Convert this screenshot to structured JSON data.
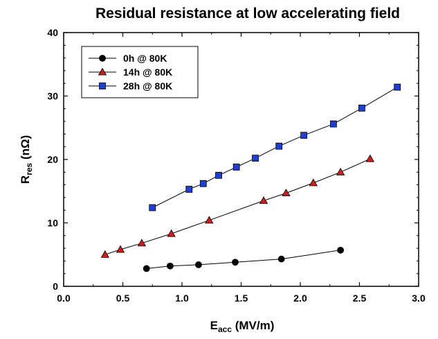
{
  "chart_data": {
    "type": "line",
    "title": "Residual resistance at low accelerating field",
    "xlabel_main": "E",
    "xlabel_sub": "acc",
    "xlabel_unit": " (MV/m)",
    "ylabel_main": "R",
    "ylabel_sub": "res",
    "ylabel_unit": " (nΩ)",
    "xlim": [
      0.0,
      3.0
    ],
    "ylim": [
      0,
      40
    ],
    "xticks": [
      "0.0",
      "0.5",
      "1.0",
      "1.5",
      "2.0",
      "2.5",
      "3.0"
    ],
    "yticks": [
      "0",
      "10",
      "20",
      "30",
      "40"
    ],
    "grid": false,
    "legend_position": "top-left",
    "series": [
      {
        "name": "0h @ 80K",
        "marker": "circle",
        "color": "#000000",
        "x": [
          0.7,
          0.9,
          1.14,
          1.45,
          1.84,
          2.34
        ],
        "y": [
          2.8,
          3.2,
          3.4,
          3.8,
          4.3,
          5.7
        ]
      },
      {
        "name": "14h @ 80K",
        "marker": "triangle",
        "color": "#cc1f1f",
        "x": [
          0.35,
          0.48,
          0.66,
          0.91,
          1.23,
          1.69,
          1.88,
          2.11,
          2.34,
          2.59
        ],
        "y": [
          5.0,
          5.8,
          6.8,
          8.3,
          10.4,
          13.5,
          14.7,
          16.3,
          18.0,
          20.1
        ]
      },
      {
        "name": "28h @ 80K",
        "marker": "square",
        "color": "#1f3fd0",
        "x": [
          0.75,
          1.06,
          1.18,
          1.31,
          1.46,
          1.62,
          1.82,
          2.03,
          2.28,
          2.52,
          2.82
        ],
        "y": [
          12.4,
          15.3,
          16.2,
          17.5,
          18.8,
          20.2,
          22.1,
          23.8,
          25.6,
          28.1,
          31.4
        ]
      }
    ]
  }
}
